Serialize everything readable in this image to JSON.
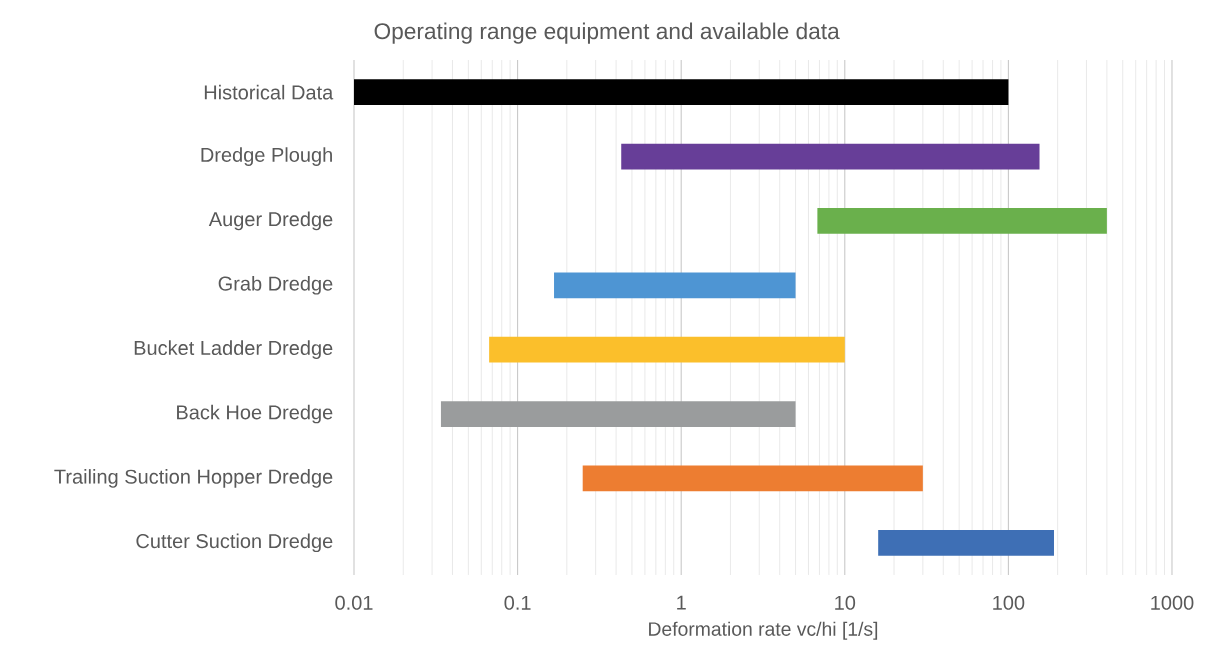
{
  "chart_data": {
    "type": "bar",
    "orientation": "horizontal",
    "title": "Operating range equipment and available data",
    "xlabel": "Deformation rate vc/hi [1/s]",
    "categories": [
      "Historical Data",
      "Dredge Plough",
      "Auger Dredge",
      "Grab Dredge",
      "Bucket Ladder Dredge",
      "Back Hoe Dredge",
      "Trailing Suction Hopper Dredge",
      "Cutter Suction Dredge"
    ],
    "base": [
      0.01,
      0.43,
      6.8,
      0.167,
      0.067,
      0.034,
      0.25,
      16
    ],
    "values": [
      99.99,
      154.57,
      393.2,
      4.833,
      9.933,
      4.966,
      29.75,
      174
    ],
    "colors": [
      "#000000",
      "#673e98",
      "#6ab04c",
      "#4e95d3",
      "#fbbf2b",
      "#9a9c9d",
      "#ed7d31",
      "#3e6fb5"
    ],
    "log": "x",
    "xlim": [
      0.01,
      1000
    ],
    "xticks": [
      0.01,
      0.1,
      1,
      10,
      100,
      1000
    ],
    "grid": "x"
  }
}
